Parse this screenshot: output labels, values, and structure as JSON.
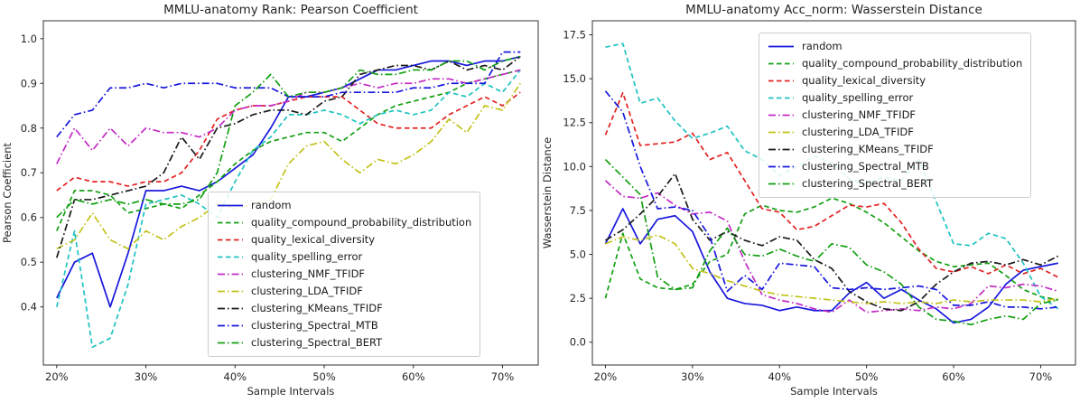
{
  "figure": {
    "background": "#ffffff",
    "axis_color": "#262626"
  },
  "chart_data": [
    {
      "type": "line",
      "title": "MMLU-anatomy Rank: Pearson Coefficient",
      "xlabel": "Sample Intervals",
      "ylabel": "Pearson Coefficient",
      "xlim": [
        18.5,
        74
      ],
      "ylim": [
        0.27,
        1.04
      ],
      "grid": false,
      "legend_position": "center-left-inside",
      "xticks": {
        "values": [
          20,
          30,
          40,
          50,
          60,
          70
        ],
        "labels": [
          "20%",
          "30%",
          "40%",
          "50%",
          "60%",
          "70%"
        ]
      },
      "yticks": {
        "values": [
          0.4,
          0.5,
          0.6,
          0.7,
          0.8,
          0.9,
          1.0
        ],
        "labels": [
          "0.4",
          "0.5",
          "0.6",
          "0.7",
          "0.8",
          "0.9",
          "1.0"
        ]
      },
      "x": [
        20,
        22,
        24,
        26,
        28,
        30,
        32,
        34,
        36,
        38,
        40,
        42,
        44,
        46,
        48,
        50,
        52,
        54,
        56,
        58,
        60,
        62,
        64,
        66,
        68,
        70,
        72
      ],
      "series": [
        {
          "name": "random",
          "color": "#1717dd",
          "style": "solid",
          "values": [
            0.42,
            0.5,
            0.52,
            0.4,
            0.52,
            0.66,
            0.66,
            0.67,
            0.66,
            0.68,
            0.71,
            0.74,
            0.8,
            0.87,
            0.87,
            0.88,
            0.89,
            0.91,
            0.93,
            0.93,
            0.94,
            0.95,
            0.95,
            0.94,
            0.95,
            0.95,
            0.96
          ]
        },
        {
          "name": "quality_compound_probability_distribution",
          "color": "#13a013",
          "style": "dashed",
          "values": [
            0.57,
            0.66,
            0.66,
            0.65,
            0.61,
            0.62,
            0.63,
            0.62,
            0.65,
            0.68,
            0.72,
            0.75,
            0.77,
            0.78,
            0.79,
            0.79,
            0.77,
            0.8,
            0.83,
            0.85,
            0.86,
            0.87,
            0.88,
            0.9,
            0.91,
            0.92,
            0.93
          ]
        },
        {
          "name": "quality_lexical_diversity",
          "color": "#e32222",
          "style": "dashed",
          "values": [
            0.66,
            0.69,
            0.68,
            0.68,
            0.67,
            0.68,
            0.68,
            0.7,
            0.75,
            0.82,
            0.84,
            0.85,
            0.85,
            0.86,
            0.87,
            0.87,
            0.87,
            0.84,
            0.81,
            0.8,
            0.8,
            0.8,
            0.83,
            0.85,
            0.87,
            0.85,
            0.88
          ]
        },
        {
          "name": "quality_spelling_error",
          "color": "#1fc2c2",
          "style": "dashed",
          "values": [
            0.4,
            0.57,
            0.31,
            0.33,
            0.45,
            0.63,
            0.64,
            0.65,
            0.63,
            0.6,
            0.68,
            0.75,
            0.78,
            0.83,
            0.83,
            0.84,
            0.83,
            0.81,
            0.83,
            0.84,
            0.83,
            0.84,
            0.88,
            0.87,
            0.9,
            0.88,
            0.93
          ]
        },
        {
          "name": "clustering_NMF_TFIDF",
          "color": "#c42ac4",
          "style": "dashdot",
          "values": [
            0.72,
            0.8,
            0.75,
            0.8,
            0.76,
            0.8,
            0.79,
            0.79,
            0.78,
            0.8,
            0.84,
            0.85,
            0.85,
            0.86,
            0.88,
            0.88,
            0.89,
            0.9,
            0.89,
            0.9,
            0.9,
            0.91,
            0.91,
            0.9,
            0.91,
            0.92,
            0.93
          ]
        },
        {
          "name": "clustering_LDA_TFIDF",
          "color": "#c2c21a",
          "style": "dashdot",
          "values": [
            0.53,
            0.55,
            0.61,
            0.55,
            0.53,
            0.57,
            0.55,
            0.58,
            0.6,
            0.63,
            0.62,
            0.63,
            0.64,
            0.72,
            0.76,
            0.77,
            0.73,
            0.7,
            0.73,
            0.72,
            0.74,
            0.77,
            0.82,
            0.79,
            0.85,
            0.84,
            0.9
          ]
        },
        {
          "name": "clustering_KMeans_TFIDF",
          "color": "#1a1a1a",
          "style": "dashdot",
          "values": [
            0.51,
            0.64,
            0.64,
            0.65,
            0.66,
            0.67,
            0.7,
            0.78,
            0.73,
            0.8,
            0.81,
            0.83,
            0.84,
            0.84,
            0.83,
            0.86,
            0.87,
            0.92,
            0.93,
            0.94,
            0.94,
            0.93,
            0.95,
            0.93,
            0.94,
            0.93,
            0.96
          ]
        },
        {
          "name": "clustering_Spectral_MTB",
          "color": "#1717dd",
          "style": "dashdot",
          "values": [
            0.78,
            0.83,
            0.84,
            0.89,
            0.89,
            0.9,
            0.89,
            0.9,
            0.9,
            0.9,
            0.89,
            0.89,
            0.89,
            0.87,
            0.87,
            0.87,
            0.88,
            0.88,
            0.88,
            0.88,
            0.89,
            0.89,
            0.9,
            0.9,
            0.9,
            0.97,
            0.97
          ]
        },
        {
          "name": "clustering_Spectral_BERT",
          "color": "#13a013",
          "style": "dashdot",
          "values": [
            0.6,
            0.64,
            0.63,
            0.64,
            0.63,
            0.64,
            0.63,
            0.63,
            0.64,
            0.7,
            0.85,
            0.88,
            0.92,
            0.87,
            0.88,
            0.88,
            0.89,
            0.93,
            0.92,
            0.92,
            0.93,
            0.93,
            0.95,
            0.95,
            0.93,
            0.95,
            0.96
          ]
        }
      ]
    },
    {
      "type": "line",
      "title": "MMLU-anatomy Acc_norm: Wasserstein Distance",
      "xlabel": "Sample Intervals",
      "ylabel": "Wasserstein Distance",
      "xlim": [
        18.5,
        74
      ],
      "ylim": [
        -1.3,
        18.3
      ],
      "grid": false,
      "legend_position": "upper-center-inside",
      "xticks": {
        "values": [
          20,
          30,
          40,
          50,
          60,
          70
        ],
        "labels": [
          "20%",
          "30%",
          "40%",
          "50%",
          "60%",
          "70%"
        ]
      },
      "yticks": {
        "values": [
          0.0,
          2.5,
          5.0,
          7.5,
          10.0,
          12.5,
          15.0,
          17.5
        ],
        "labels": [
          "0.0",
          "2.5",
          "5.0",
          "7.5",
          "10.0",
          "12.5",
          "15.0",
          "17.5"
        ]
      },
      "x": [
        20,
        22,
        24,
        26,
        28,
        30,
        32,
        34,
        36,
        38,
        40,
        42,
        44,
        46,
        48,
        50,
        52,
        54,
        56,
        58,
        60,
        62,
        64,
        66,
        68,
        70,
        72
      ],
      "series": [
        {
          "name": "random",
          "color": "#1717dd",
          "style": "solid",
          "values": [
            5.6,
            7.6,
            5.6,
            7.0,
            7.2,
            6.3,
            4.0,
            2.5,
            2.2,
            2.1,
            1.8,
            2.0,
            1.8,
            1.8,
            2.8,
            3.4,
            2.5,
            3.0,
            2.4,
            1.9,
            1.1,
            1.3,
            2.0,
            3.3,
            4.1,
            4.3,
            4.5
          ]
        },
        {
          "name": "quality_compound_probability_distribution",
          "color": "#13a013",
          "style": "dashed",
          "values": [
            2.5,
            6.2,
            3.6,
            3.1,
            3.0,
            3.3,
            4.6,
            5.0,
            7.3,
            7.8,
            7.5,
            7.4,
            7.7,
            8.2,
            7.9,
            7.4,
            6.8,
            6.0,
            5.2,
            4.6,
            4.3,
            4.4,
            4.5,
            3.8,
            3.0,
            2.6,
            2.4
          ]
        },
        {
          "name": "quality_lexical_diversity",
          "color": "#e32222",
          "style": "dashed",
          "values": [
            11.8,
            14.2,
            11.2,
            11.3,
            11.4,
            11.9,
            10.4,
            10.8,
            9.2,
            7.6,
            7.4,
            6.4,
            6.6,
            7.2,
            7.8,
            7.7,
            7.9,
            6.8,
            5.3,
            4.2,
            4.0,
            4.3,
            3.9,
            4.4,
            3.9,
            4.2,
            3.7
          ]
        },
        {
          "name": "quality_spelling_error",
          "color": "#1fc2c2",
          "style": "dashed",
          "values": [
            16.8,
            17.0,
            13.6,
            13.9,
            12.6,
            11.6,
            11.9,
            12.3,
            10.9,
            10.4,
            9.5,
            10.0,
            10.6,
            10.2,
            9.3,
            9.0,
            9.4,
            9.2,
            10.4,
            8.0,
            5.6,
            5.5,
            6.2,
            5.9,
            4.5,
            2.6,
            1.9
          ]
        },
        {
          "name": "clustering_NMF_TFIDF",
          "color": "#c42ac4",
          "style": "dashdot",
          "values": [
            9.2,
            8.3,
            8.2,
            8.5,
            7.8,
            7.3,
            7.4,
            6.9,
            4.6,
            2.7,
            2.4,
            2.2,
            1.9,
            1.7,
            2.4,
            1.7,
            1.8,
            1.9,
            1.8,
            2.0,
            1.9,
            2.2,
            3.2,
            3.1,
            3.3,
            3.2,
            2.9
          ]
        },
        {
          "name": "clustering_LDA_TFIDF",
          "color": "#c2c21a",
          "style": "dashdot",
          "values": [
            5.6,
            6.0,
            5.8,
            6.1,
            5.6,
            4.2,
            3.9,
            3.5,
            3.2,
            2.9,
            2.7,
            2.6,
            2.5,
            2.4,
            2.3,
            2.2,
            2.3,
            2.2,
            2.3,
            2.2,
            2.4,
            2.3,
            2.4,
            2.4,
            2.4,
            2.3,
            2.5
          ]
        },
        {
          "name": "clustering_KMeans_TFIDF",
          "color": "#1a1a1a",
          "style": "dashdot",
          "values": [
            5.8,
            6.4,
            7.3,
            8.3,
            9.6,
            7.0,
            5.8,
            6.3,
            5.8,
            5.5,
            6.0,
            5.8,
            4.7,
            4.2,
            2.9,
            2.3,
            1.9,
            1.8,
            2.3,
            3.3,
            4.0,
            4.5,
            4.6,
            4.4,
            4.7,
            4.4,
            4.9
          ]
        },
        {
          "name": "clustering_Spectral_MTB",
          "color": "#1717dd",
          "style": "dashdot",
          "values": [
            14.3,
            13.1,
            10.0,
            7.6,
            7.7,
            7.5,
            6.0,
            2.9,
            3.8,
            3.0,
            4.5,
            4.4,
            4.3,
            3.1,
            3.0,
            3.1,
            3.0,
            3.1,
            3.2,
            3.0,
            2.1,
            2.1,
            2.3,
            2.0,
            2.0,
            1.9,
            2.0
          ]
        },
        {
          "name": "clustering_Spectral_BERT",
          "color": "#13a013",
          "style": "dashdot",
          "values": [
            10.4,
            9.4,
            8.4,
            3.7,
            3.0,
            3.1,
            5.2,
            6.5,
            5.0,
            4.9,
            5.3,
            4.9,
            4.6,
            5.6,
            5.4,
            4.4,
            4.0,
            3.3,
            2.0,
            1.3,
            1.2,
            1.0,
            1.3,
            1.5,
            1.3,
            2.2,
            2.4
          ]
        }
      ]
    }
  ]
}
